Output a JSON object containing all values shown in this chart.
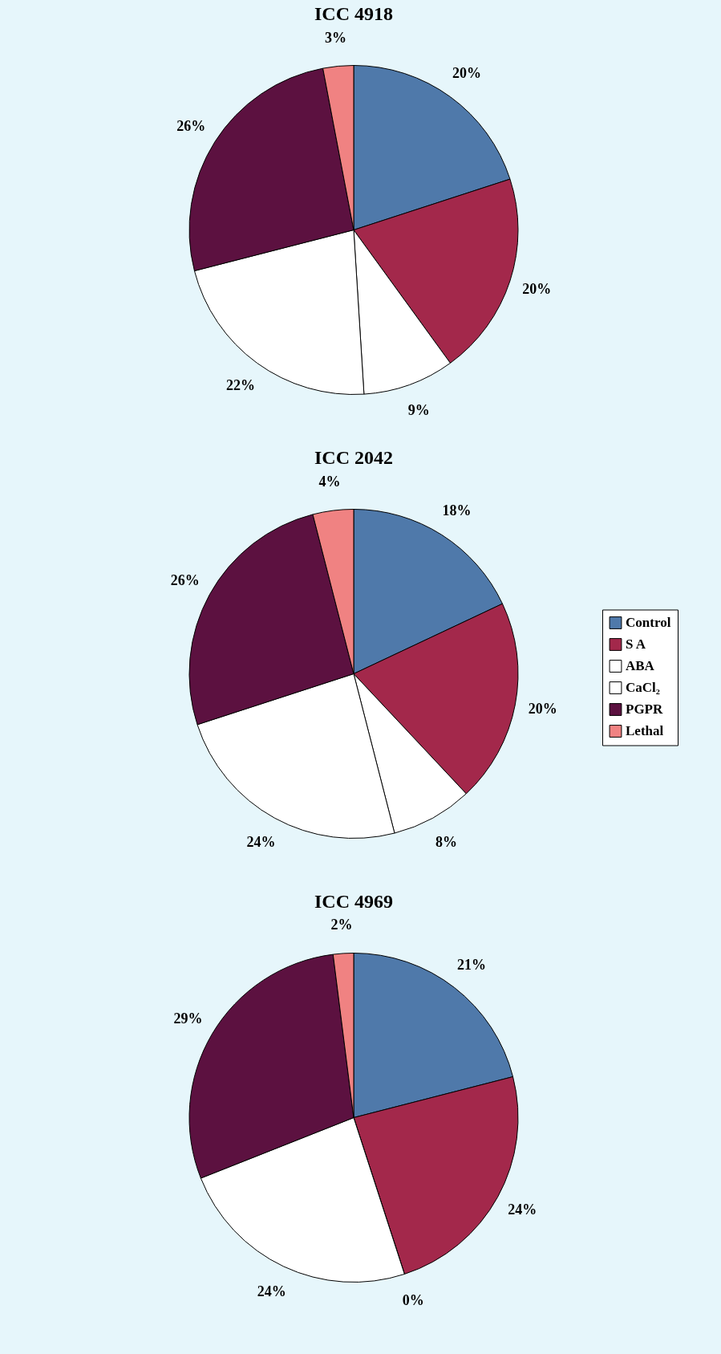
{
  "chart_data": [
    {
      "type": "pie",
      "title": "ICC 4918",
      "categories": [
        null,
        null,
        null,
        null,
        null,
        null
      ],
      "values": [
        20,
        20,
        9,
        22,
        26,
        3
      ],
      "value_labels": [
        "20%",
        "20%",
        "9%",
        "22%",
        "26%",
        "3%"
      ],
      "colors": [
        "#4f79aa",
        "#a3284b",
        "#ffffff",
        "#ffffff",
        "#5c1140",
        "#f08282"
      ],
      "legend": false
    },
    {
      "type": "pie",
      "title": "ICC 2042",
      "categories": [
        "Control",
        "S A",
        "ABA",
        "CaCl₂",
        "PGPR",
        "Lethal"
      ],
      "values": [
        18,
        20,
        8,
        24,
        26,
        4
      ],
      "value_labels": [
        "18%",
        "20%",
        "8%",
        "24%",
        "26%",
        "4%"
      ],
      "colors": [
        "#4f79aa",
        "#a3284b",
        "#ffffff",
        "#ffffff",
        "#5c1140",
        "#f08282"
      ],
      "legend": "right"
    },
    {
      "type": "pie",
      "title": "ICC 4969",
      "categories": [
        null,
        null,
        null,
        null,
        null,
        null
      ],
      "values": [
        21,
        24,
        0,
        24,
        29,
        2
      ],
      "value_labels": [
        "21%",
        "24%",
        "0%",
        "24%",
        "29%",
        "2%"
      ],
      "colors": [
        "#4f79aa",
        "#a3284b",
        "#ffffff",
        "#ffffff",
        "#5c1140",
        "#f08282"
      ],
      "legend": false
    }
  ]
}
